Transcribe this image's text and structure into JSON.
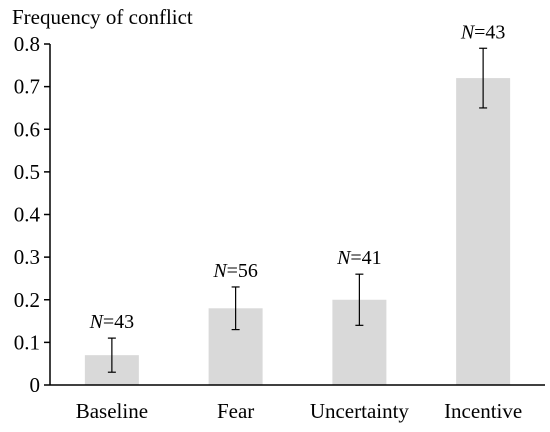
{
  "chart_data": {
    "type": "bar",
    "title": "",
    "ylabel": "Frequency of conflict",
    "xlabel": "",
    "categories": [
      "Baseline",
      "Fear",
      "Uncertainty",
      "Incentive"
    ],
    "values": [
      0.07,
      0.18,
      0.2,
      0.72
    ],
    "error_low": [
      0.03,
      0.13,
      0.14,
      0.65
    ],
    "error_high": [
      0.11,
      0.23,
      0.26,
      0.79
    ],
    "n_labels": [
      {
        "prefix": "N",
        "text": "=43"
      },
      {
        "prefix": "N",
        "text": "=56"
      },
      {
        "prefix": "N",
        "text": "=41"
      },
      {
        "prefix": "N",
        "text": "=43"
      }
    ],
    "ylim": [
      0,
      0.8
    ],
    "yticks": [
      "0",
      "0.1",
      "0.2",
      "0.3",
      "0.4",
      "0.5",
      "0.6",
      "0.7",
      "0.8"
    ],
    "grid": false,
    "legend": "none",
    "bar_color": "#d9d9d9"
  }
}
